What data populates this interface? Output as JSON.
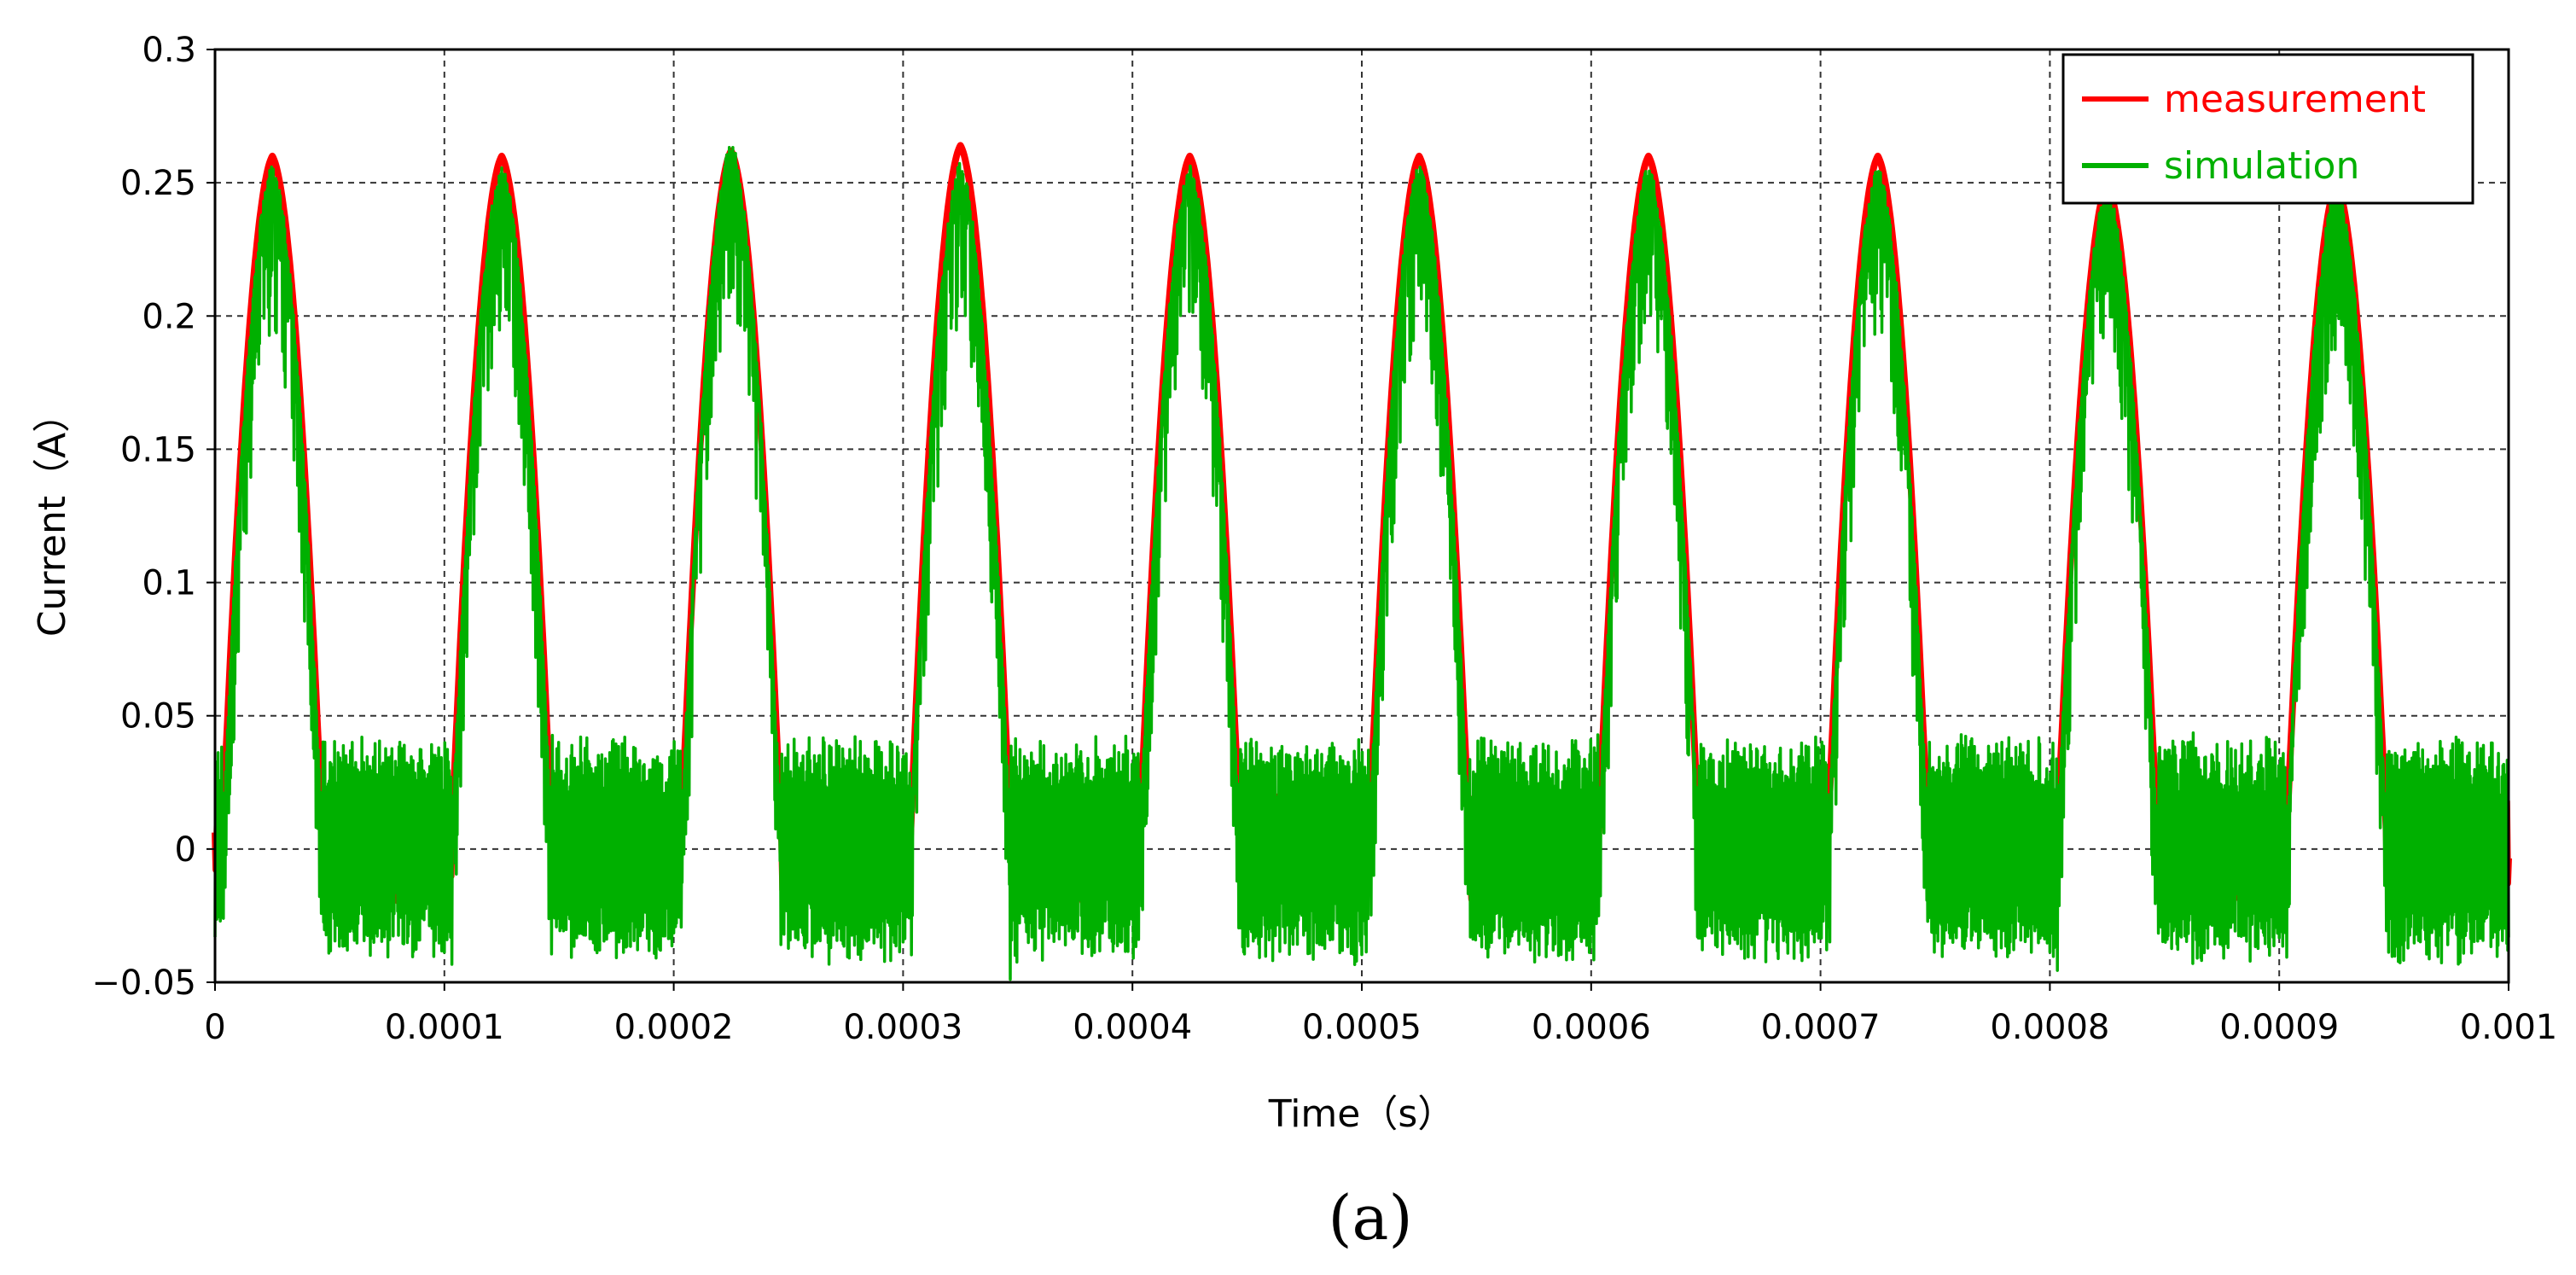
{
  "chart_data": {
    "type": "line",
    "xlabel": "Time（s）",
    "ylabel": "Current（A）",
    "xlim": [
      0,
      0.001
    ],
    "ylim": [
      -0.05,
      0.3
    ],
    "x_ticks": [
      "0",
      "0.0001",
      "0.0002",
      "0.0003",
      "0.0004",
      "0.0005",
      "0.0006",
      "0.0007",
      "0.0008",
      "0.0009",
      "0.001"
    ],
    "y_ticks": [
      "-0.05",
      "0",
      "0.05",
      "0.1",
      "0.15",
      "0.2",
      "0.25",
      "0.3"
    ],
    "grid": true,
    "legend_position": "top-right",
    "waveform": {
      "period": 0.0001,
      "first_peak_time": 2.5e-05,
      "pulse_half_width": 2.2e-05,
      "baseline_band": [
        -0.035,
        0.035
      ]
    },
    "series": [
      {
        "name": "measurement",
        "color": "#ff0000",
        "peak_values": [
          0.26,
          0.26,
          0.262,
          0.264,
          0.26,
          0.26,
          0.26,
          0.26,
          0.25,
          0.25
        ]
      },
      {
        "name": "simulation",
        "color": "#00b000",
        "peak_values": [
          0.257,
          0.257,
          0.266,
          0.258,
          0.257,
          0.257,
          0.257,
          0.257,
          0.25,
          0.25
        ],
        "noise_band": 0.035
      }
    ]
  },
  "caption": "(a)"
}
